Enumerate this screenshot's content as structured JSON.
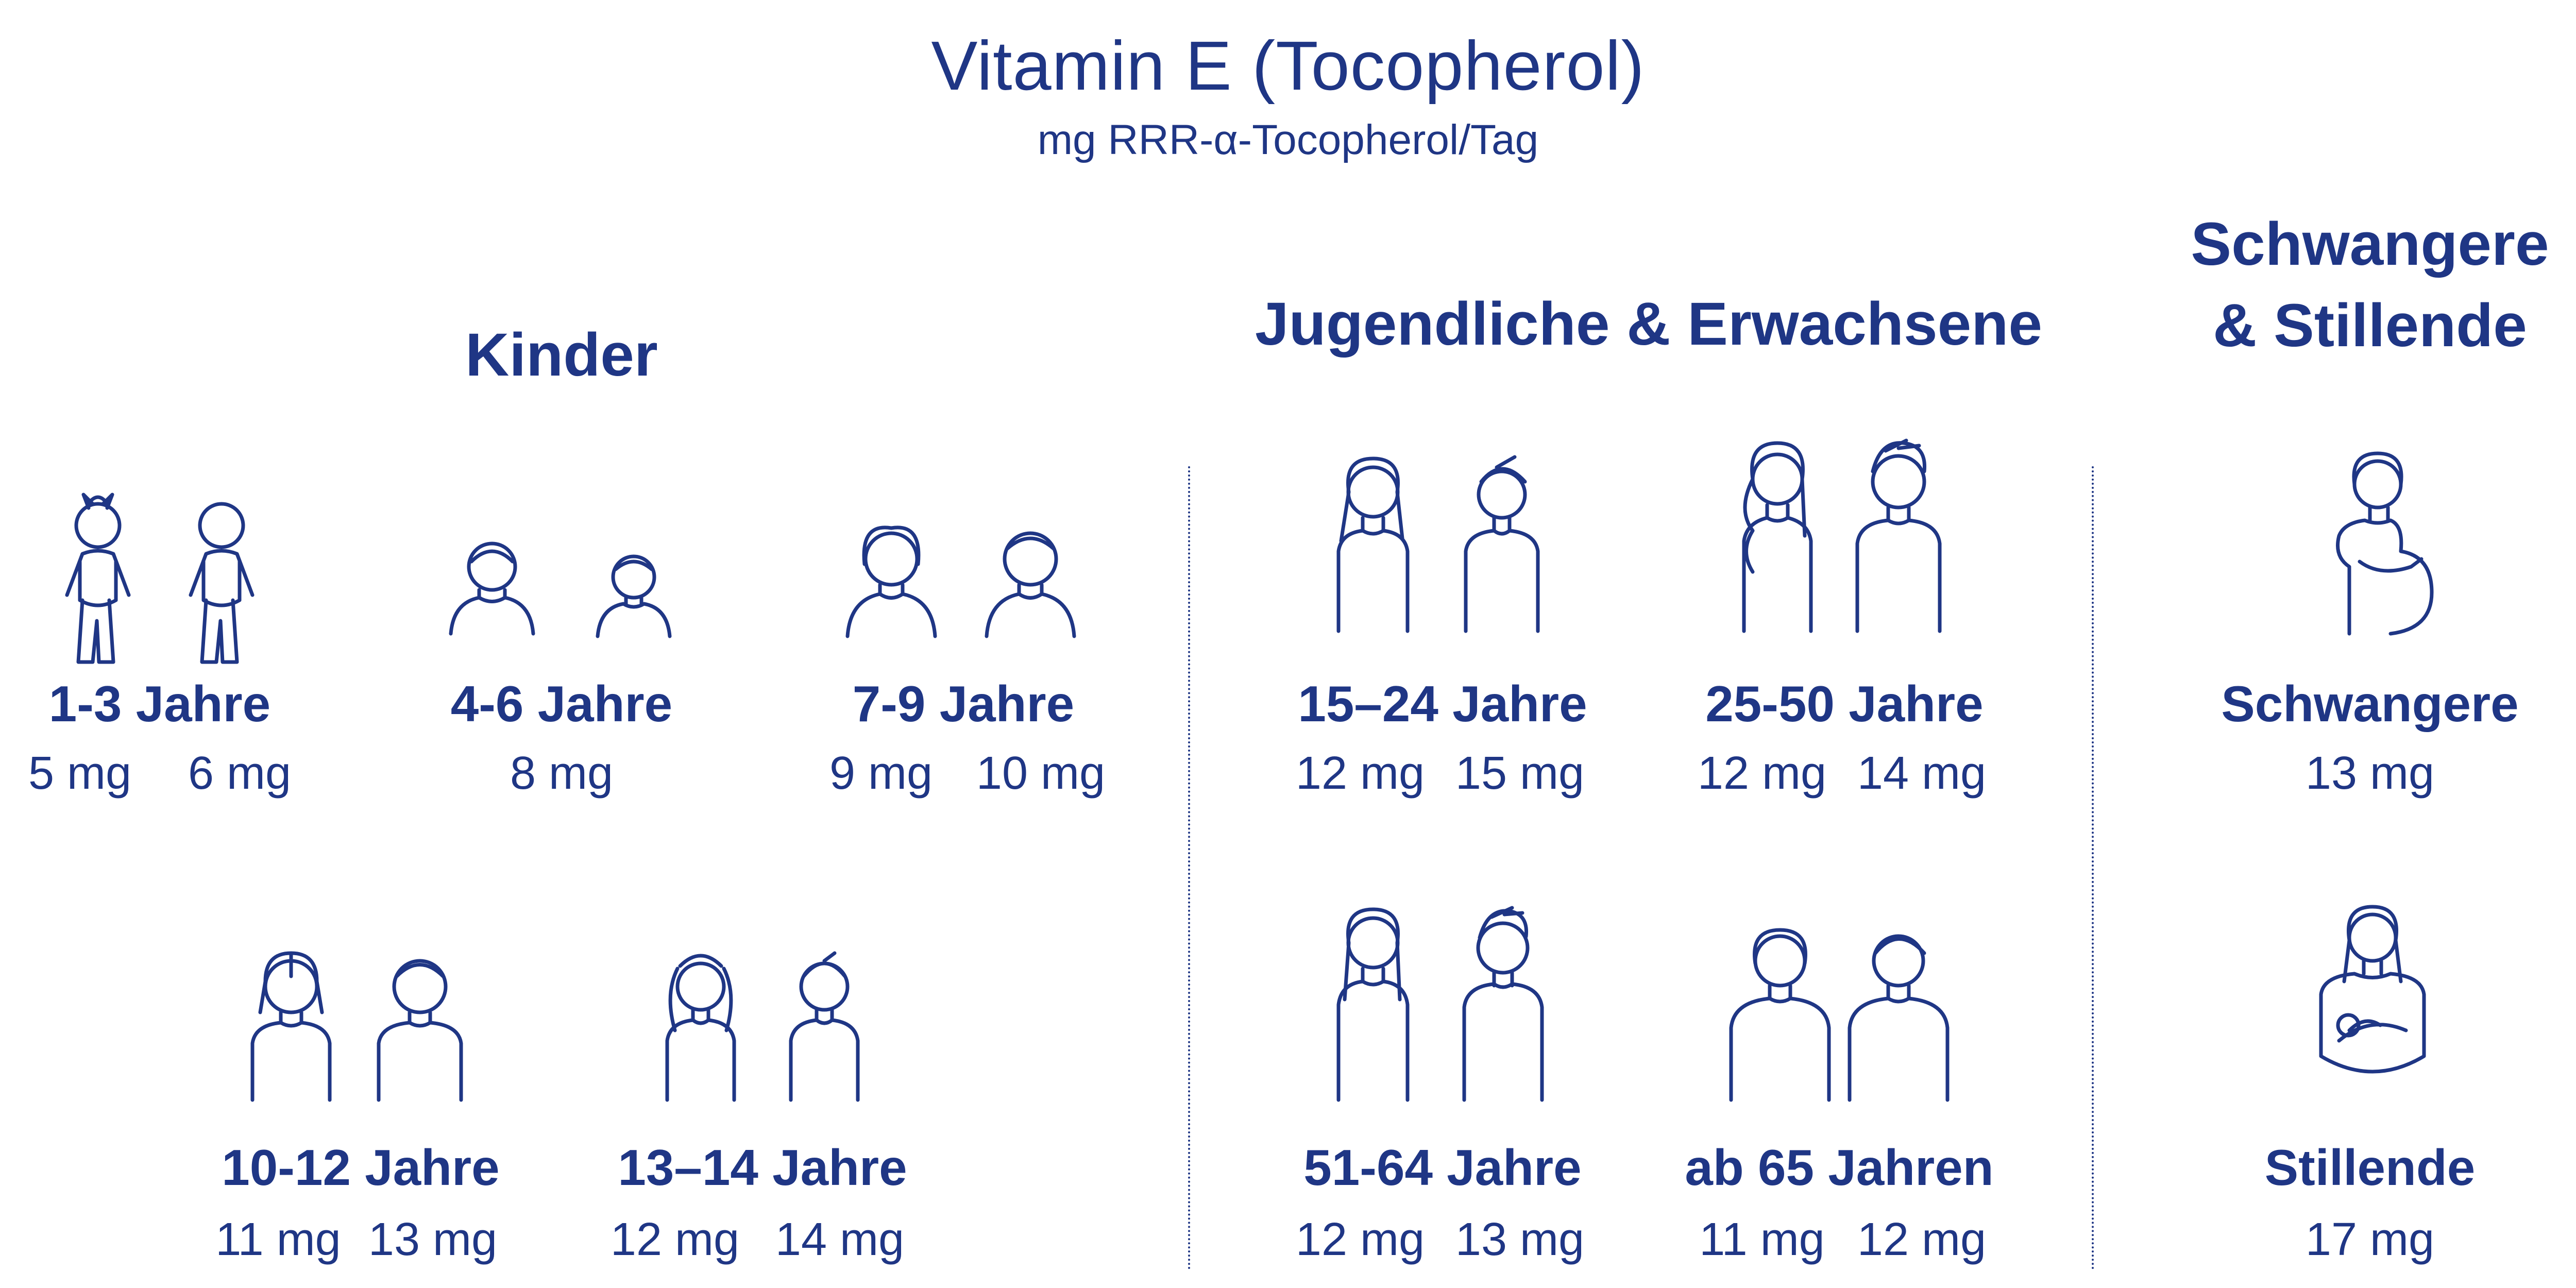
{
  "title": "Vitamin E (Tocopherol)",
  "subtitle": "mg RRR-α-Tocopherol/Tag",
  "colors": {
    "primary": "#1f3685",
    "background": "#ffffff"
  },
  "sections": {
    "kinder": "Kinder",
    "jugendliche": "Jugendliche & Erwachsene",
    "schwangere_line1": "Schwangere",
    "schwangere_line2": "& Stillende"
  },
  "groups": [
    {
      "label": "1-3 Jahre",
      "values": [
        "5 mg",
        "6 mg"
      ],
      "icons": [
        "toddler-girl-icon",
        "toddler-boy-icon"
      ]
    },
    {
      "label": "4-6 Jahre",
      "values": [
        "8 mg"
      ],
      "icons": [
        "girl-icon",
        "boy-icon"
      ]
    },
    {
      "label": "7-9 Jahre",
      "values": [
        "9 mg",
        "10 mg"
      ],
      "icons": [
        "girl-icon",
        "boy-icon"
      ]
    },
    {
      "label": "10-12 Jahre",
      "values": [
        "11 mg",
        "13 mg"
      ],
      "icons": [
        "girl-icon",
        "boy-icon"
      ]
    },
    {
      "label": "13–14 Jahre",
      "values": [
        "12 mg",
        "14 mg"
      ],
      "icons": [
        "girl-pigtails-icon",
        "boy-icon"
      ]
    },
    {
      "label": "15–24 Jahre",
      "values": [
        "12 mg",
        "15 mg"
      ],
      "icons": [
        "woman-icon",
        "man-icon"
      ]
    },
    {
      "label": "25-50 Jahre",
      "values": [
        "12 mg",
        "14 mg"
      ],
      "icons": [
        "woman-icon",
        "man-icon"
      ]
    },
    {
      "label": "51-64 Jahre",
      "values": [
        "12 mg",
        "13 mg"
      ],
      "icons": [
        "woman-icon",
        "man-icon"
      ]
    },
    {
      "label": "ab 65 Jahren",
      "values": [
        "11 mg",
        "12 mg"
      ],
      "icons": [
        "older-woman-icon",
        "older-man-icon"
      ]
    },
    {
      "label": "Schwangere",
      "values": [
        "13 mg"
      ],
      "icons": [
        "pregnant-woman-icon"
      ]
    },
    {
      "label": "Stillende",
      "values": [
        "17 mg"
      ],
      "icons": [
        "breastfeeding-woman-icon"
      ]
    }
  ]
}
